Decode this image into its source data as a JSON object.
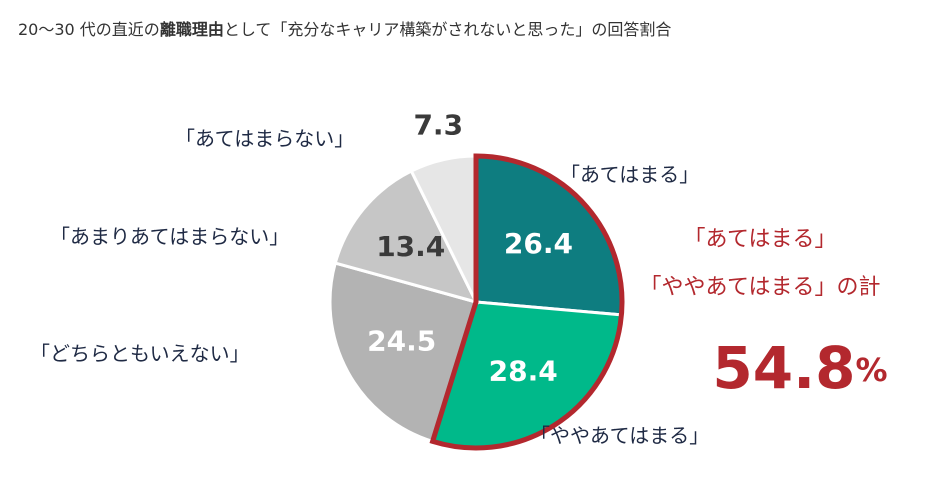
{
  "chart_data": {
    "type": "pie",
    "title": [
      "20〜30 代の直近の",
      "離職理由",
      "として「充分なキャリア構築がされないと思った」の回答割合"
    ],
    "categories": [
      "「あてはまる」",
      "「ややあてはまる」",
      "「どちらともいえない」",
      "「あまりあてはまらない」",
      "「あてはまらない」"
    ],
    "values": [
      26.4,
      28.4,
      24.5,
      13.4,
      7.3
    ],
    "colors": [
      "#0e7d80",
      "#00b98a",
      "#b3b3b3",
      "#c6c6c6",
      "#e6e6e6"
    ],
    "highlight": [
      0,
      1
    ],
    "highlight_color": "#b3282e",
    "annotation": {
      "lines": [
        "「あてはまる」",
        "「ややあてはまる」の計"
      ],
      "total": 54.8,
      "unit": "%"
    }
  }
}
